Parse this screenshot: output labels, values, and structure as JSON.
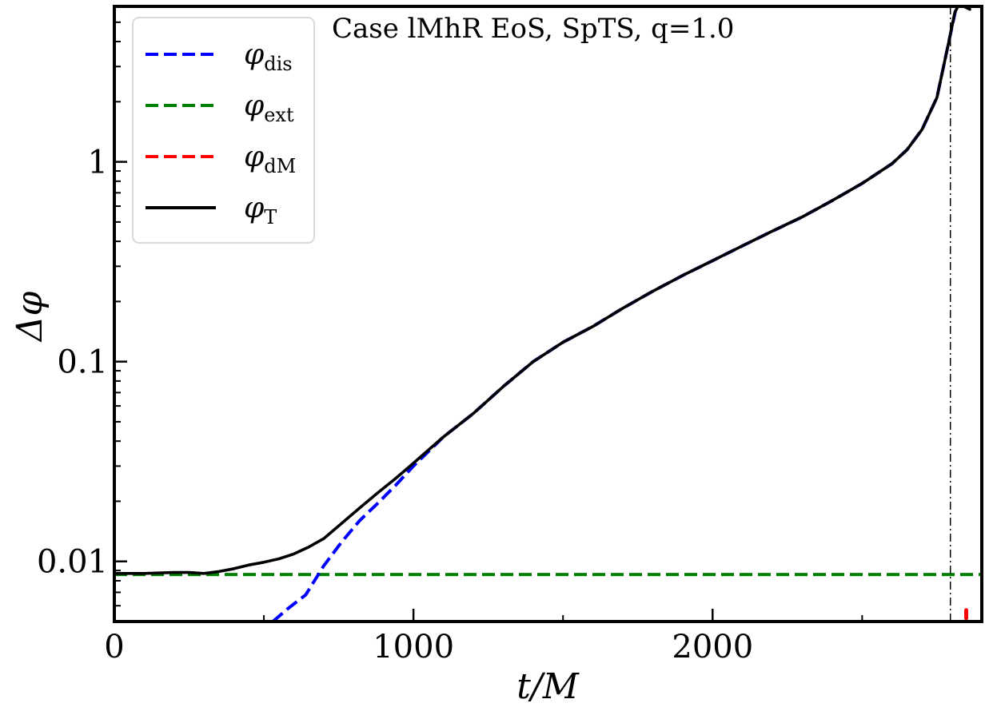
{
  "chart_data": {
    "type": "line",
    "title": "Case lMhR EoS, SpTS, q=1.0",
    "xlabel": "t/M",
    "ylabel": "Δφ",
    "xlim": [
      0,
      2900
    ],
    "ylim": [
      0.005,
      6
    ],
    "yscale": "log",
    "xticks": [
      0,
      1000,
      2000
    ],
    "xtick_labels": [
      "0",
      "1000",
      "2000"
    ],
    "yticks": [
      0.01,
      0.1,
      1
    ],
    "ytick_labels": [
      "0.01",
      "0.1",
      "1"
    ],
    "grid": false,
    "legend_position": "top-left",
    "vline_x": 2795,
    "series": [
      {
        "name": "φ_dis",
        "symbol": "φ",
        "sub": "dis",
        "color": "#0000ff",
        "dash": true,
        "x": [
          530,
          580,
          640,
          700,
          760,
          820,
          880,
          940,
          1000,
          1100,
          1200,
          1300,
          1400,
          1500,
          1600,
          1700,
          1800,
          1900,
          2000,
          2100,
          2200,
          2300,
          2400,
          2500,
          2600,
          2650,
          2700,
          2750,
          2790,
          2815
        ],
        "y": [
          0.005,
          0.0058,
          0.0068,
          0.0095,
          0.0125,
          0.016,
          0.0195,
          0.024,
          0.03,
          0.042,
          0.055,
          0.075,
          0.1,
          0.125,
          0.15,
          0.185,
          0.225,
          0.27,
          0.32,
          0.38,
          0.45,
          0.53,
          0.64,
          0.78,
          0.98,
          1.15,
          1.45,
          2.1,
          4.0,
          6.0
        ]
      },
      {
        "name": "φ_ext",
        "symbol": "φ",
        "sub": "ext",
        "color": "#008000",
        "dash": true,
        "x": [
          0,
          2900
        ],
        "y": [
          0.0086,
          0.0086
        ]
      },
      {
        "name": "φ_dM",
        "symbol": "φ",
        "sub": "dM",
        "color": "#ff0000",
        "dash": true,
        "x": [
          2848,
          2848
        ],
        "y": [
          0.0052,
          0.0057
        ]
      },
      {
        "name": "φ_T",
        "symbol": "φ",
        "sub": "T",
        "color": "#000000",
        "dash": false,
        "x": [
          0,
          100,
          200,
          250,
          300,
          350,
          400,
          450,
          500,
          550,
          600,
          650,
          700,
          760,
          820,
          880,
          940,
          1000,
          1100,
          1200,
          1300,
          1400,
          1500,
          1600,
          1700,
          1800,
          1900,
          2000,
          2100,
          2200,
          2300,
          2400,
          2500,
          2600,
          2650,
          2700,
          2750,
          2790,
          2810,
          2820,
          2840,
          2860
        ],
        "y": [
          0.0087,
          0.0087,
          0.0088,
          0.0088,
          0.0087,
          0.0089,
          0.0092,
          0.0096,
          0.0099,
          0.0103,
          0.0109,
          0.0118,
          0.013,
          0.0155,
          0.0185,
          0.022,
          0.026,
          0.031,
          0.042,
          0.055,
          0.075,
          0.1,
          0.125,
          0.15,
          0.185,
          0.225,
          0.27,
          0.32,
          0.38,
          0.45,
          0.53,
          0.64,
          0.78,
          0.98,
          1.15,
          1.45,
          2.1,
          4.0,
          5.6,
          6.0,
          6.0,
          5.8
        ]
      }
    ]
  }
}
